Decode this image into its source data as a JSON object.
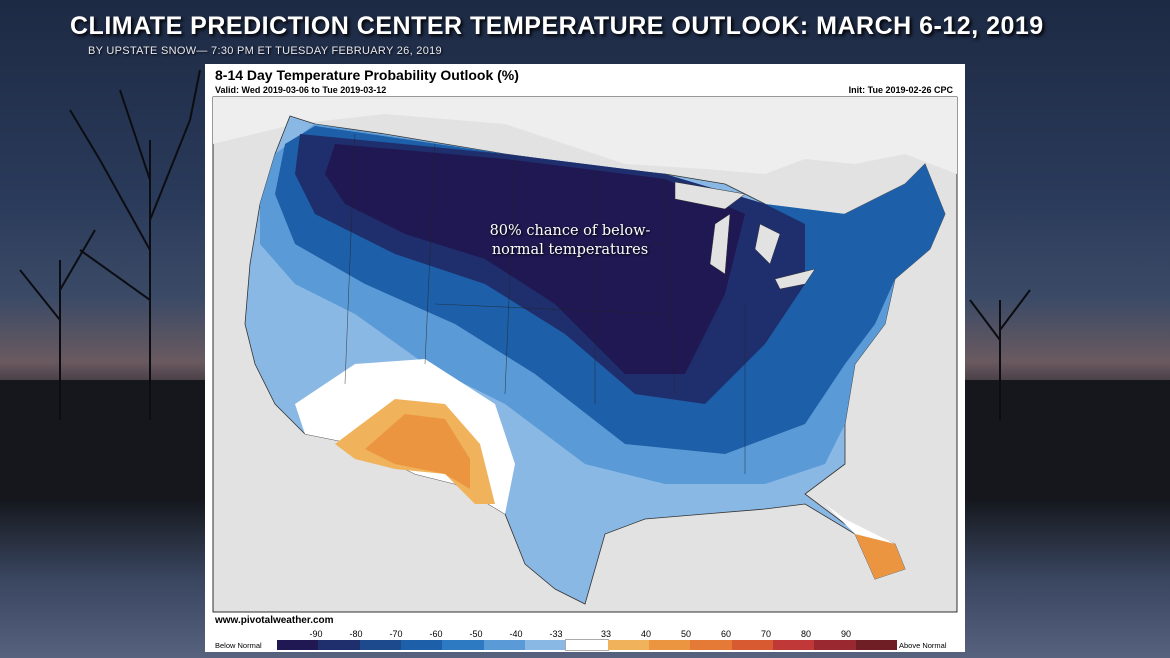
{
  "header": {
    "headline": "CLIMATE PREDICTION CENTER TEMPERATURE OUTLOOK:  MARCH 6-12, 2019",
    "byline": "BY UPSTATE SNOW— 7:30 PM ET TUESDAY FEBRUARY 26, 2019"
  },
  "map": {
    "title": "8-14 Day Temperature Probability Outlook (%)",
    "valid": "Valid: Wed 2019-03-06 to Tue 2019-03-12",
    "init": "Init: Tue 2019-02-26 CPC",
    "annotation_line1": "80% chance of below-",
    "annotation_line2": "normal temperatures",
    "credit": "www.pivotalweather.com"
  },
  "legend": {
    "below_label": "Below Normal",
    "above_label": "Above Normal",
    "ticks": [
      "-90",
      "-80",
      "-70",
      "-60",
      "-50",
      "-40",
      "-33",
      "33",
      "40",
      "50",
      "60",
      "70",
      "80",
      "90"
    ],
    "colors": [
      "#1f1852",
      "#1f2f6e",
      "#1c4a8c",
      "#1d5fa8",
      "#2d7ac2",
      "#5a9ad6",
      "#8ab8e4",
      "#ffffff",
      "#f0b25a",
      "#ec9540",
      "#e47a35",
      "#d85a30",
      "#c03838",
      "#9a2830",
      "#6e1e24"
    ]
  }
}
